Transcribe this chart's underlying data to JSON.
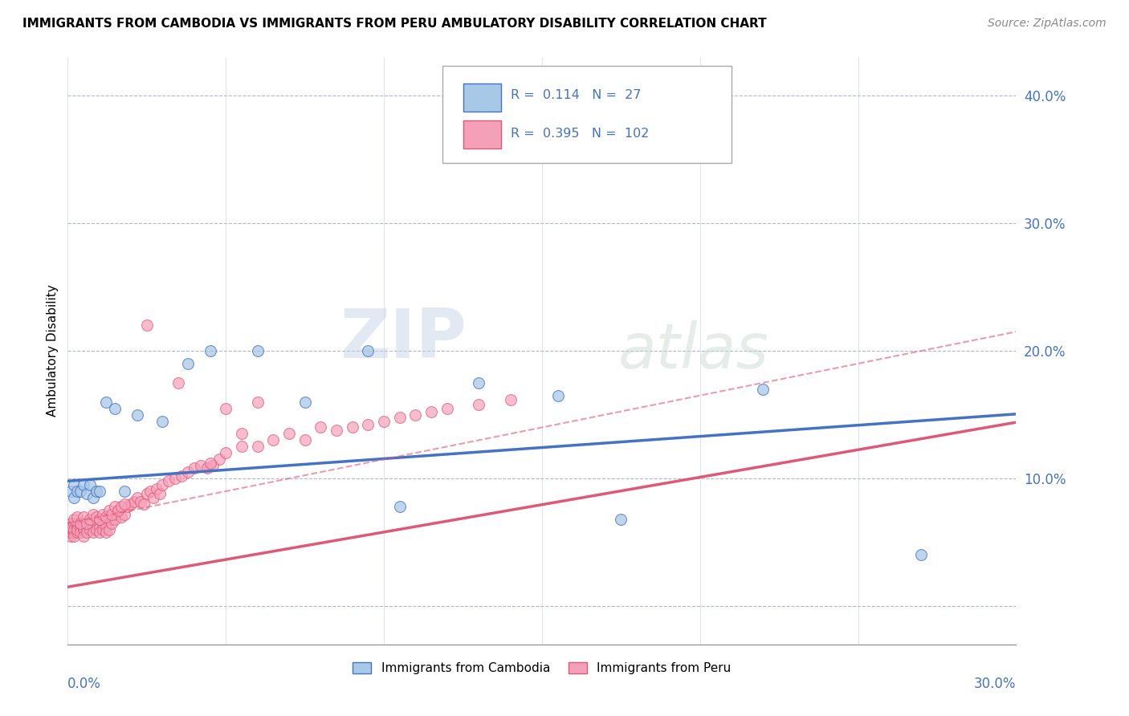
{
  "title": "IMMIGRANTS FROM CAMBODIA VS IMMIGRANTS FROM PERU AMBULATORY DISABILITY CORRELATION CHART",
  "source": "Source: ZipAtlas.com",
  "ylabel": "Ambulatory Disability",
  "xlim": [
    0.0,
    0.3
  ],
  "ylim": [
    -0.03,
    0.43
  ],
  "r_cambodia": "0.114",
  "n_cambodia": "27",
  "r_peru": "0.395",
  "n_peru": "102",
  "color_cambodia": "#a8c8e8",
  "color_peru": "#f4a0b8",
  "line_color_cambodia": "#4472c4",
  "line_color_peru": "#e05878",
  "watermark_zip": "ZIP",
  "watermark_atlas": "atlas",
  "legend_label_cambodia": "Immigrants from Cambodia",
  "legend_label_peru": "Immigrants from Peru",
  "cam_x": [
    0.001,
    0.002,
    0.002,
    0.003,
    0.004,
    0.005,
    0.006,
    0.007,
    0.008,
    0.009,
    0.01,
    0.012,
    0.015,
    0.018,
    0.022,
    0.03,
    0.038,
    0.06,
    0.075,
    0.095,
    0.13,
    0.155,
    0.175,
    0.22,
    0.27,
    0.105,
    0.045
  ],
  "cam_y": [
    0.09,
    0.095,
    0.085,
    0.09,
    0.09,
    0.095,
    0.088,
    0.095,
    0.085,
    0.09,
    0.09,
    0.16,
    0.155,
    0.09,
    0.15,
    0.145,
    0.19,
    0.2,
    0.16,
    0.2,
    0.175,
    0.165,
    0.068,
    0.17,
    0.04,
    0.078,
    0.2
  ],
  "peru_x": [
    0.001,
    0.001,
    0.001,
    0.001,
    0.001,
    0.002,
    0.002,
    0.002,
    0.002,
    0.003,
    0.003,
    0.003,
    0.003,
    0.004,
    0.004,
    0.004,
    0.005,
    0.005,
    0.005,
    0.006,
    0.006,
    0.007,
    0.007,
    0.008,
    0.008,
    0.009,
    0.009,
    0.01,
    0.01,
    0.011,
    0.011,
    0.012,
    0.012,
    0.013,
    0.013,
    0.014,
    0.015,
    0.015,
    0.016,
    0.017,
    0.018,
    0.019,
    0.02,
    0.021,
    0.022,
    0.023,
    0.024,
    0.025,
    0.026,
    0.027,
    0.028,
    0.029,
    0.03,
    0.032,
    0.034,
    0.036,
    0.038,
    0.04,
    0.042,
    0.044,
    0.046,
    0.048,
    0.05,
    0.055,
    0.06,
    0.065,
    0.07,
    0.075,
    0.08,
    0.085,
    0.09,
    0.095,
    0.1,
    0.105,
    0.11,
    0.115,
    0.12,
    0.13,
    0.14,
    0.045,
    0.002,
    0.003,
    0.004,
    0.005,
    0.006,
    0.007,
    0.008,
    0.009,
    0.01,
    0.011,
    0.012,
    0.013,
    0.014,
    0.015,
    0.016,
    0.017,
    0.018,
    0.05,
    0.06,
    0.055,
    0.035,
    0.025
  ],
  "peru_y": [
    0.065,
    0.06,
    0.055,
    0.058,
    0.062,
    0.065,
    0.058,
    0.06,
    0.055,
    0.062,
    0.058,
    0.065,
    0.06,
    0.062,
    0.058,
    0.065,
    0.06,
    0.062,
    0.055,
    0.062,
    0.058,
    0.065,
    0.06,
    0.062,
    0.058,
    0.065,
    0.06,
    0.062,
    0.058,
    0.065,
    0.06,
    0.062,
    0.058,
    0.068,
    0.06,
    0.065,
    0.072,
    0.068,
    0.075,
    0.07,
    0.072,
    0.078,
    0.08,
    0.082,
    0.085,
    0.082,
    0.08,
    0.088,
    0.09,
    0.085,
    0.092,
    0.088,
    0.095,
    0.098,
    0.1,
    0.102,
    0.105,
    0.108,
    0.11,
    0.108,
    0.11,
    0.115,
    0.12,
    0.125,
    0.125,
    0.13,
    0.135,
    0.13,
    0.14,
    0.138,
    0.14,
    0.142,
    0.145,
    0.148,
    0.15,
    0.152,
    0.155,
    0.158,
    0.162,
    0.112,
    0.068,
    0.07,
    0.065,
    0.07,
    0.065,
    0.068,
    0.072,
    0.07,
    0.068,
    0.072,
    0.07,
    0.075,
    0.072,
    0.078,
    0.075,
    0.078,
    0.08,
    0.155,
    0.16,
    0.135,
    0.175,
    0.22
  ]
}
